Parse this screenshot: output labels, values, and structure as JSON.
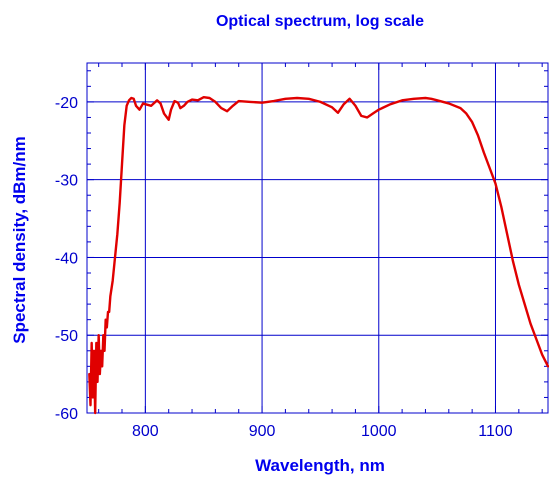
{
  "chart_data": {
    "type": "line",
    "title": "Optical spectrum, log scale",
    "xlabel": "Wavelength, nm",
    "ylabel": "Spectral density, dBm/nm",
    "xlim": [
      750,
      1145
    ],
    "ylim": [
      -60,
      -15
    ],
    "x_ticks": [
      800,
      900,
      1000,
      1100
    ],
    "x_tick_labels": [
      "800",
      "900",
      "1000",
      "1100"
    ],
    "y_ticks": [
      -60,
      -50,
      -40,
      -30,
      -20
    ],
    "y_tick_labels": [
      "-60",
      "-50",
      "-40",
      "-30",
      "-20"
    ],
    "grid": true,
    "legend": false,
    "colors": {
      "axis": "#0000cc",
      "grid": "#0000cc",
      "series": "#e00000",
      "text": "#0000ee"
    },
    "series": [
      {
        "x": [
          752,
          753,
          754,
          755,
          756,
          757,
          758,
          759,
          760,
          761,
          762,
          763,
          764,
          765,
          766,
          767,
          768,
          769,
          770,
          772,
          774,
          776,
          778,
          780,
          782,
          784,
          786,
          788,
          790,
          792,
          795,
          798,
          800,
          805,
          810,
          813,
          816,
          820,
          822,
          825,
          828,
          830,
          833,
          836,
          840,
          845,
          850,
          855,
          860,
          865,
          870,
          875,
          880,
          890,
          900,
          910,
          920,
          930,
          940,
          950,
          960,
          965,
          970,
          975,
          980,
          985,
          990,
          995,
          1000,
          1010,
          1020,
          1030,
          1040,
          1045,
          1050,
          1060,
          1070,
          1075,
          1080,
          1085,
          1090,
          1095,
          1100,
          1105,
          1110,
          1115,
          1120,
          1125,
          1130,
          1135,
          1140,
          1145
        ],
        "y": [
          -55,
          -59,
          -51,
          -58,
          -52,
          -60,
          -51,
          -56,
          -50,
          -55,
          -52,
          -54,
          -50,
          -52,
          -48,
          -49,
          -47,
          -47,
          -45,
          -43,
          -40,
          -37,
          -33,
          -28,
          -23,
          -20.5,
          -19.8,
          -19.5,
          -19.6,
          -20.5,
          -21,
          -20.2,
          -20.3,
          -20.5,
          -19.8,
          -20.2,
          -21.5,
          -22.3,
          -21,
          -19.9,
          -20.1,
          -20.8,
          -20.5,
          -20.0,
          -19.7,
          -19.8,
          -19.4,
          -19.5,
          -20.0,
          -20.8,
          -21.2,
          -20.5,
          -19.9,
          -20.0,
          -20.1,
          -19.9,
          -19.6,
          -19.5,
          -19.6,
          -20.0,
          -20.7,
          -21.4,
          -20.3,
          -19.6,
          -20.5,
          -21.8,
          -22.0,
          -21.5,
          -21.0,
          -20.3,
          -19.8,
          -19.6,
          -19.5,
          -19.6,
          -19.8,
          -20.2,
          -20.8,
          -21.5,
          -22.6,
          -24.3,
          -26.5,
          -28.5,
          -30.5,
          -33.5,
          -37,
          -40.5,
          -43.5,
          -46,
          -48.5,
          -50.5,
          -52.5,
          -54
        ]
      }
    ]
  }
}
